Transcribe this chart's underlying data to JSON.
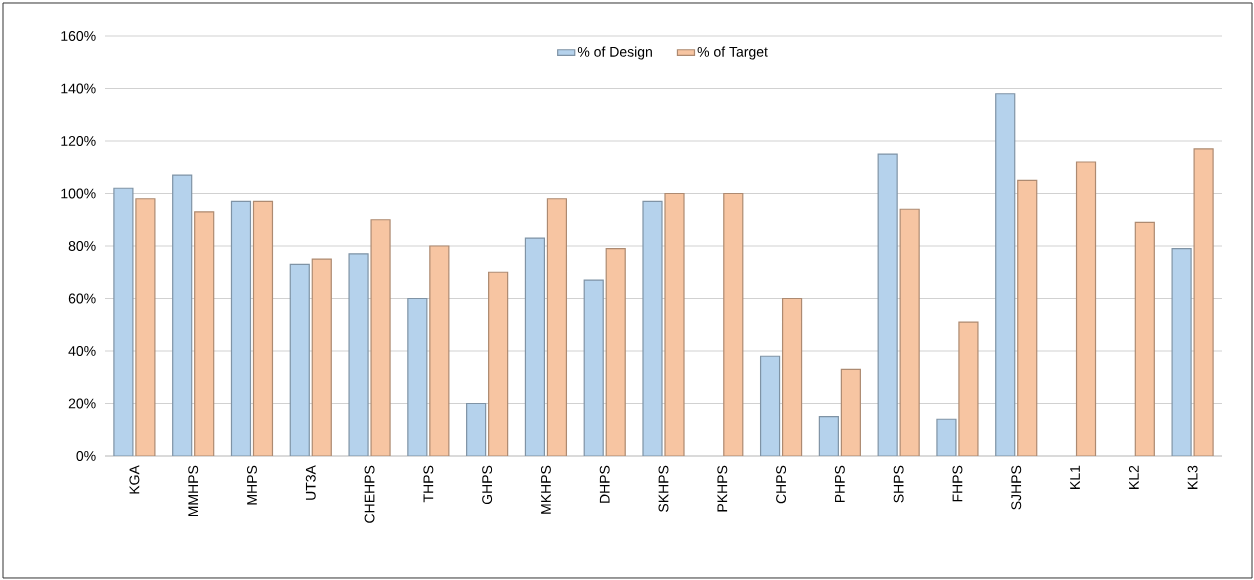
{
  "chart_data": {
    "type": "bar",
    "categories": [
      "KGA",
      "MMHPS",
      "MHPS",
      "UT3A",
      "CHEHPS",
      "THPS",
      "GHPS",
      "MKHPS",
      "DHPS",
      "SKHPS",
      "PKHPS",
      "CHPS",
      "PHPS",
      "SHPS",
      "FHPS",
      "SJHPS",
      "KL1",
      "KL2",
      "KL3"
    ],
    "series": [
      {
        "name": "% of Design",
        "color": "#b5d2ec",
        "values": [
          102,
          107,
          97,
          73,
          77,
          60,
          20,
          83,
          67,
          97,
          null,
          38,
          15,
          115,
          14,
          138,
          null,
          null,
          79
        ]
      },
      {
        "name": "% of Target",
        "color": "#f7c5a2",
        "values": [
          98,
          93,
          97,
          75,
          90,
          80,
          70,
          98,
          79,
          100,
          100,
          60,
          33,
          94,
          51,
          105,
          112,
          89,
          117
        ]
      }
    ],
    "ylim": [
      0,
      160
    ],
    "yticks": [
      {
        "value": 0,
        "label": "0%"
      },
      {
        "value": 20,
        "label": "20%"
      },
      {
        "value": 40,
        "label": "40%"
      },
      {
        "value": 60,
        "label": "60%"
      },
      {
        "value": 80,
        "label": "80%"
      },
      {
        "value": 100,
        "label": "100%"
      },
      {
        "value": 120,
        "label": "120%"
      },
      {
        "value": 140,
        "label": "140%"
      },
      {
        "value": 160,
        "label": "160%"
      }
    ],
    "grid": "y",
    "legend": "top"
  }
}
